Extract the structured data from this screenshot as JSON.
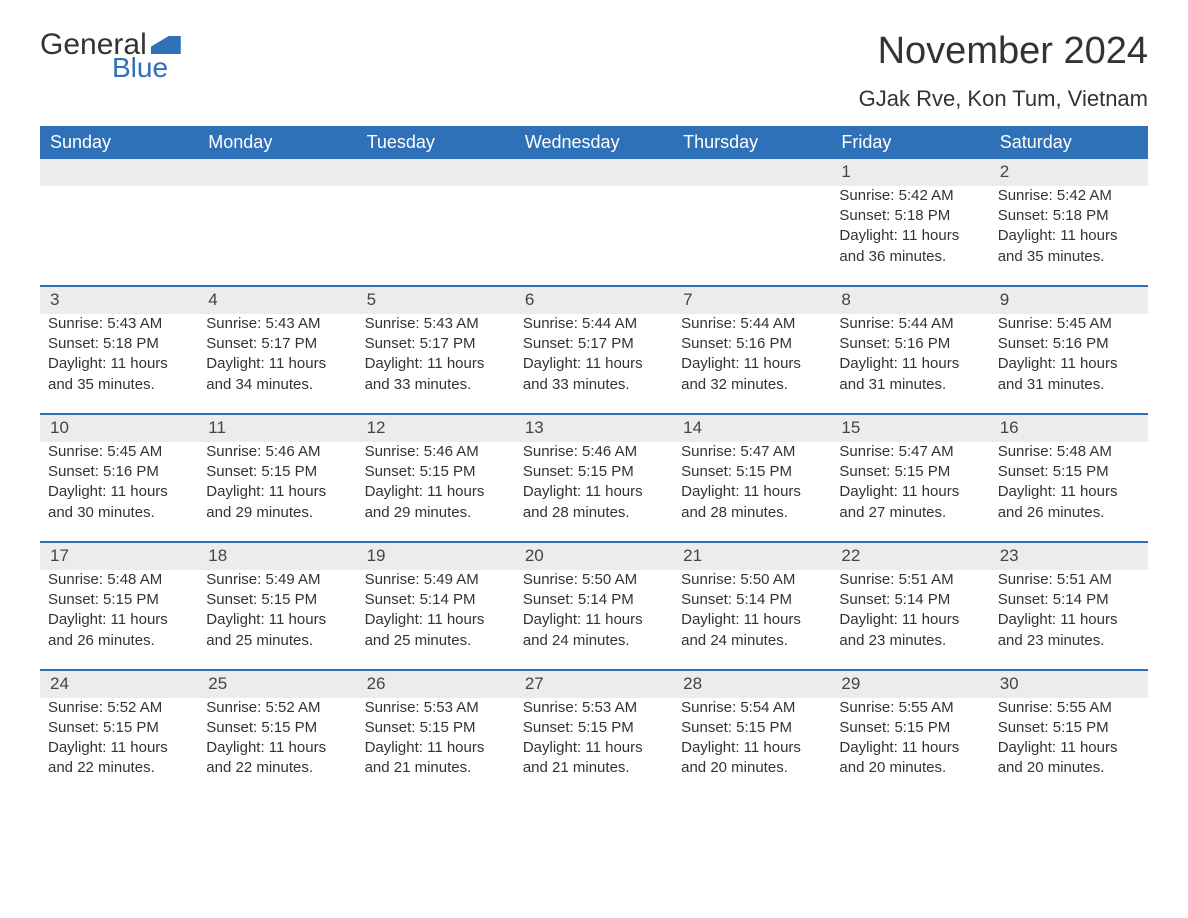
{
  "logo": {
    "general": "General",
    "blue": "Blue"
  },
  "title": "November 2024",
  "subtitle": "GJak Rve, Kon Tum, Vietnam",
  "colors": {
    "brand": "#2f71b8",
    "header_bg": "#2f71b8",
    "header_text": "#ffffff",
    "daynum_bg": "#ececec",
    "text": "#333333"
  },
  "day_headers": [
    "Sunday",
    "Monday",
    "Tuesday",
    "Wednesday",
    "Thursday",
    "Friday",
    "Saturday"
  ],
  "weeks": [
    [
      null,
      null,
      null,
      null,
      null,
      {
        "n": "1",
        "sr": "Sunrise: 5:42 AM",
        "ss": "Sunset: 5:18 PM",
        "d1": "Daylight: 11 hours",
        "d2": "and 36 minutes."
      },
      {
        "n": "2",
        "sr": "Sunrise: 5:42 AM",
        "ss": "Sunset: 5:18 PM",
        "d1": "Daylight: 11 hours",
        "d2": "and 35 minutes."
      }
    ],
    [
      {
        "n": "3",
        "sr": "Sunrise: 5:43 AM",
        "ss": "Sunset: 5:18 PM",
        "d1": "Daylight: 11 hours",
        "d2": "and 35 minutes."
      },
      {
        "n": "4",
        "sr": "Sunrise: 5:43 AM",
        "ss": "Sunset: 5:17 PM",
        "d1": "Daylight: 11 hours",
        "d2": "and 34 minutes."
      },
      {
        "n": "5",
        "sr": "Sunrise: 5:43 AM",
        "ss": "Sunset: 5:17 PM",
        "d1": "Daylight: 11 hours",
        "d2": "and 33 minutes."
      },
      {
        "n": "6",
        "sr": "Sunrise: 5:44 AM",
        "ss": "Sunset: 5:17 PM",
        "d1": "Daylight: 11 hours",
        "d2": "and 33 minutes."
      },
      {
        "n": "7",
        "sr": "Sunrise: 5:44 AM",
        "ss": "Sunset: 5:16 PM",
        "d1": "Daylight: 11 hours",
        "d2": "and 32 minutes."
      },
      {
        "n": "8",
        "sr": "Sunrise: 5:44 AM",
        "ss": "Sunset: 5:16 PM",
        "d1": "Daylight: 11 hours",
        "d2": "and 31 minutes."
      },
      {
        "n": "9",
        "sr": "Sunrise: 5:45 AM",
        "ss": "Sunset: 5:16 PM",
        "d1": "Daylight: 11 hours",
        "d2": "and 31 minutes."
      }
    ],
    [
      {
        "n": "10",
        "sr": "Sunrise: 5:45 AM",
        "ss": "Sunset: 5:16 PM",
        "d1": "Daylight: 11 hours",
        "d2": "and 30 minutes."
      },
      {
        "n": "11",
        "sr": "Sunrise: 5:46 AM",
        "ss": "Sunset: 5:15 PM",
        "d1": "Daylight: 11 hours",
        "d2": "and 29 minutes."
      },
      {
        "n": "12",
        "sr": "Sunrise: 5:46 AM",
        "ss": "Sunset: 5:15 PM",
        "d1": "Daylight: 11 hours",
        "d2": "and 29 minutes."
      },
      {
        "n": "13",
        "sr": "Sunrise: 5:46 AM",
        "ss": "Sunset: 5:15 PM",
        "d1": "Daylight: 11 hours",
        "d2": "and 28 minutes."
      },
      {
        "n": "14",
        "sr": "Sunrise: 5:47 AM",
        "ss": "Sunset: 5:15 PM",
        "d1": "Daylight: 11 hours",
        "d2": "and 28 minutes."
      },
      {
        "n": "15",
        "sr": "Sunrise: 5:47 AM",
        "ss": "Sunset: 5:15 PM",
        "d1": "Daylight: 11 hours",
        "d2": "and 27 minutes."
      },
      {
        "n": "16",
        "sr": "Sunrise: 5:48 AM",
        "ss": "Sunset: 5:15 PM",
        "d1": "Daylight: 11 hours",
        "d2": "and 26 minutes."
      }
    ],
    [
      {
        "n": "17",
        "sr": "Sunrise: 5:48 AM",
        "ss": "Sunset: 5:15 PM",
        "d1": "Daylight: 11 hours",
        "d2": "and 26 minutes."
      },
      {
        "n": "18",
        "sr": "Sunrise: 5:49 AM",
        "ss": "Sunset: 5:15 PM",
        "d1": "Daylight: 11 hours",
        "d2": "and 25 minutes."
      },
      {
        "n": "19",
        "sr": "Sunrise: 5:49 AM",
        "ss": "Sunset: 5:14 PM",
        "d1": "Daylight: 11 hours",
        "d2": "and 25 minutes."
      },
      {
        "n": "20",
        "sr": "Sunrise: 5:50 AM",
        "ss": "Sunset: 5:14 PM",
        "d1": "Daylight: 11 hours",
        "d2": "and 24 minutes."
      },
      {
        "n": "21",
        "sr": "Sunrise: 5:50 AM",
        "ss": "Sunset: 5:14 PM",
        "d1": "Daylight: 11 hours",
        "d2": "and 24 minutes."
      },
      {
        "n": "22",
        "sr": "Sunrise: 5:51 AM",
        "ss": "Sunset: 5:14 PM",
        "d1": "Daylight: 11 hours",
        "d2": "and 23 minutes."
      },
      {
        "n": "23",
        "sr": "Sunrise: 5:51 AM",
        "ss": "Sunset: 5:14 PM",
        "d1": "Daylight: 11 hours",
        "d2": "and 23 minutes."
      }
    ],
    [
      {
        "n": "24",
        "sr": "Sunrise: 5:52 AM",
        "ss": "Sunset: 5:15 PM",
        "d1": "Daylight: 11 hours",
        "d2": "and 22 minutes."
      },
      {
        "n": "25",
        "sr": "Sunrise: 5:52 AM",
        "ss": "Sunset: 5:15 PM",
        "d1": "Daylight: 11 hours",
        "d2": "and 22 minutes."
      },
      {
        "n": "26",
        "sr": "Sunrise: 5:53 AM",
        "ss": "Sunset: 5:15 PM",
        "d1": "Daylight: 11 hours",
        "d2": "and 21 minutes."
      },
      {
        "n": "27",
        "sr": "Sunrise: 5:53 AM",
        "ss": "Sunset: 5:15 PM",
        "d1": "Daylight: 11 hours",
        "d2": "and 21 minutes."
      },
      {
        "n": "28",
        "sr": "Sunrise: 5:54 AM",
        "ss": "Sunset: 5:15 PM",
        "d1": "Daylight: 11 hours",
        "d2": "and 20 minutes."
      },
      {
        "n": "29",
        "sr": "Sunrise: 5:55 AM",
        "ss": "Sunset: 5:15 PM",
        "d1": "Daylight: 11 hours",
        "d2": "and 20 minutes."
      },
      {
        "n": "30",
        "sr": "Sunrise: 5:55 AM",
        "ss": "Sunset: 5:15 PM",
        "d1": "Daylight: 11 hours",
        "d2": "and 20 minutes."
      }
    ]
  ]
}
